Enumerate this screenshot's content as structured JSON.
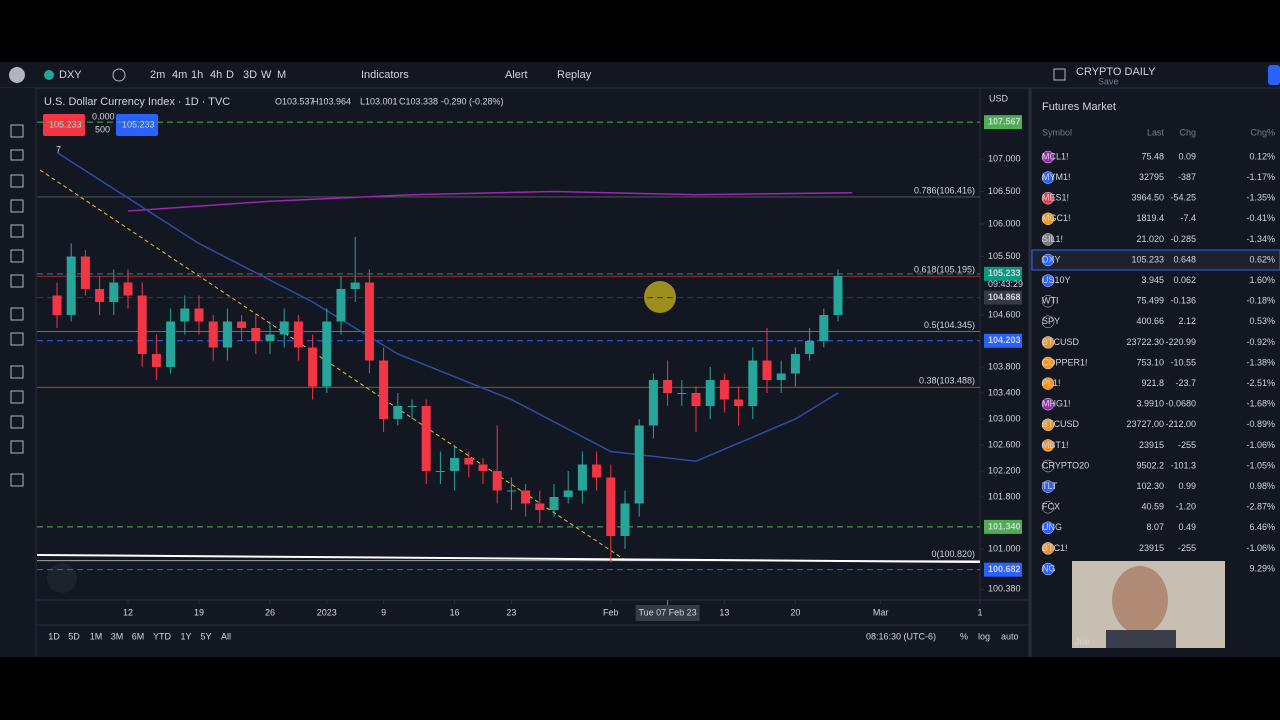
{
  "toolbar": {
    "symbol": "DXY",
    "intervals": [
      "2m",
      "4m",
      "1h",
      "4h",
      "D",
      "3D",
      "W",
      "M"
    ],
    "indicators": "Indicators",
    "alert": "Alert",
    "replay": "Replay",
    "layout_name": "CRYPTO DAILY",
    "layout_sub": "Save"
  },
  "legend": {
    "ohlc": [
      "O103.537",
      "H103.964",
      "L103.001",
      "C103.338",
      "-0.290 (-0.28%)"
    ],
    "bid": "105.233",
    "spread_top": "0.000",
    "spread_bottom": "500",
    "ask": "105.233",
    "indicator_count": "7",
    "currency": "USD"
  },
  "chart_data": {
    "type": "candlestick",
    "title": "U.S. Dollar Currency Index · 1D · TVC",
    "open": [
      104.9,
      104.6,
      105.5,
      105.0,
      104.8,
      105.1,
      104.9,
      104.0,
      103.8,
      104.5,
      104.7,
      104.5,
      104.1,
      104.5,
      104.4,
      104.2,
      104.3,
      104.5,
      104.1,
      103.5,
      104.5,
      105.0,
      105.1,
      103.9,
      103.0,
      103.2,
      103.2,
      102.2,
      102.2,
      102.4,
      102.3,
      102.2,
      101.9,
      101.9,
      101.7,
      101.6,
      101.8,
      101.9,
      102.3,
      102.1,
      101.2,
      101.7,
      102.9,
      103.6,
      103.4,
      103.4,
      103.2,
      103.6,
      103.3,
      103.2,
      103.9,
      103.6,
      103.7,
      104.0,
      104.2,
      104.6
    ],
    "high": [
      105.1,
      105.7,
      105.6,
      105.2,
      105.3,
      105.3,
      105.1,
      104.3,
      104.7,
      104.9,
      104.9,
      104.6,
      104.7,
      104.6,
      104.6,
      104.5,
      104.7,
      104.6,
      104.3,
      104.7,
      105.2,
      105.8,
      105.3,
      104.1,
      103.4,
      103.3,
      103.3,
      102.5,
      102.6,
      102.5,
      102.4,
      102.9,
      102.1,
      102.0,
      101.9,
      102.0,
      102.2,
      102.5,
      102.5,
      102.3,
      101.9,
      103.0,
      103.7,
      103.9,
      103.6,
      103.5,
      103.8,
      103.7,
      103.5,
      104.1,
      104.4,
      103.9,
      104.1,
      104.4,
      104.7,
      105.3
    ],
    "low": [
      104.4,
      104.5,
      104.9,
      104.6,
      104.6,
      104.7,
      103.8,
      103.6,
      103.7,
      104.3,
      104.3,
      103.9,
      103.9,
      104.2,
      104.0,
      104.0,
      104.1,
      103.9,
      103.3,
      103.4,
      104.3,
      104.8,
      103.7,
      102.8,
      102.9,
      103.0,
      102.0,
      102.0,
      101.9,
      102.1,
      102.0,
      101.7,
      101.6,
      101.5,
      101.4,
      101.5,
      101.7,
      101.7,
      101.9,
      100.8,
      101.0,
      101.5,
      102.7,
      103.2,
      103.2,
      102.8,
      103.0,
      103.1,
      102.9,
      103.0,
      103.4,
      103.4,
      103.5,
      103.9,
      104.1,
      104.5
    ],
    "close": [
      104.6,
      105.5,
      105.0,
      104.8,
      105.1,
      104.9,
      104.0,
      103.8,
      104.5,
      104.7,
      104.5,
      104.1,
      104.5,
      104.4,
      104.2,
      104.3,
      104.5,
      104.1,
      103.5,
      104.5,
      105.0,
      105.1,
      103.9,
      103.0,
      103.2,
      103.2,
      102.2,
      102.2,
      102.4,
      102.3,
      102.2,
      101.9,
      101.9,
      101.7,
      101.6,
      101.8,
      101.9,
      102.3,
      102.1,
      101.2,
      101.7,
      102.9,
      103.6,
      103.4,
      103.4,
      103.2,
      103.6,
      103.3,
      103.2,
      103.9,
      103.6,
      103.7,
      104.0,
      104.2,
      104.6,
      105.2
    ],
    "up_color": "#26a69a",
    "down_color": "#f23645",
    "moving_averages": [
      {
        "color": "#9c27b0",
        "x": [
          5,
          15,
          25,
          35,
          45,
          56
        ],
        "values": [
          106.2,
          106.35,
          106.45,
          106.5,
          106.45,
          106.48
        ]
      },
      {
        "color": "#2d4ea8",
        "x": [
          0,
          10,
          18,
          24,
          32,
          39,
          45,
          52,
          55
        ],
        "values": [
          107.1,
          105.7,
          104.8,
          104.0,
          103.3,
          102.5,
          102.35,
          103.0,
          103.4
        ]
      }
    ],
    "fib_levels": [
      {
        "value": 106.416,
        "label": "0.786(106.416)",
        "color": "#787b86"
      },
      {
        "value": 105.195,
        "label": "0.618(105.195)",
        "color": "#f23645"
      },
      {
        "value": 104.345,
        "label": "0.5(104.345)",
        "color": "#8bc34a"
      },
      {
        "value": 103.488,
        "label": "0.38(103.488)",
        "color": "#ff9800"
      },
      {
        "value": 100.82,
        "label": "0(100.820)",
        "color": "#ffffff"
      }
    ],
    "price_lines": [
      {
        "value": 107.567,
        "label": "107.567",
        "color": "#4caf50"
      },
      {
        "value": 105.233,
        "label": "105.233",
        "color": "#089981"
      },
      {
        "value": 104.868,
        "label": "104.868",
        "color": "#363a45"
      },
      {
        "value": 104.203,
        "label": "104.203",
        "color": "#2962ff"
      },
      {
        "value": 101.34,
        "label": "101.340",
        "color": "#4caf50"
      },
      {
        "value": 100.682,
        "label": "100.682",
        "color": "#2962ff"
      }
    ],
    "countdown": "09:43:29",
    "ylim": [
      100.18,
      108.07
    ],
    "yticks": [
      {
        "value": 107,
        "label": "107.000"
      },
      {
        "value": 106.5,
        "label": "106.500"
      },
      {
        "value": 106,
        "label": "106.000"
      },
      {
        "value": 105.5,
        "label": "105.500"
      },
      {
        "value": 104.6,
        "label": "104.600"
      },
      {
        "value": 103.8,
        "label": "103.800"
      },
      {
        "value": 103.4,
        "label": "103.400"
      },
      {
        "value": 103,
        "label": "103.000"
      },
      {
        "value": 102.6,
        "label": "102.600"
      },
      {
        "value": 102.2,
        "label": "102.200"
      },
      {
        "value": 101.8,
        "label": "101.800"
      },
      {
        "value": 101,
        "label": "101.000"
      },
      {
        "value": 100.38,
        "label": "100.380"
      }
    ],
    "xticks": [
      {
        "value": 5,
        "label": "12"
      },
      {
        "value": 10,
        "label": "19"
      },
      {
        "value": 15,
        "label": "26"
      },
      {
        "value": 19,
        "label": "2023"
      },
      {
        "value": 23,
        "label": "9"
      },
      {
        "value": 28,
        "label": "16"
      },
      {
        "value": 32,
        "label": "23"
      },
      {
        "value": 39,
        "label": "Feb"
      },
      {
        "value": 47,
        "label": "13"
      },
      {
        "value": 52,
        "label": "20"
      },
      {
        "value": 58,
        "label": "Mar"
      },
      {
        "value": 65,
        "label": "1"
      }
    ],
    "crosshair": {
      "value": 43,
      "label": "Tue 07 Feb 23"
    }
  },
  "bottom_bar": {
    "ranges": [
      "1D",
      "5D",
      "1M",
      "3M",
      "6M",
      "YTD",
      "1Y",
      "5Y",
      "All"
    ],
    "clock": "08:16:30 (UTC-6)",
    "percent": "%",
    "log": "log",
    "auto": "auto"
  },
  "watchlist": {
    "title": "Futures Market",
    "columns": [
      "Symbol",
      "Last",
      "Chg",
      "Chg%"
    ],
    "rows": [
      [
        "MCL1!",
        "75.48",
        "0.09",
        "0.12%"
      ],
      [
        "MYM1!",
        "32795",
        "-387",
        "-1.17%"
      ],
      [
        "MES1!",
        "3964.50",
        "-54.25",
        "-1.35%"
      ],
      [
        "MGC1!",
        "1819.4",
        "-7.4",
        "-0.41%"
      ],
      [
        "SIL1!",
        "21.020",
        "-0.285",
        "-1.34%"
      ],
      [
        "DXY",
        "105.233",
        "0.648",
        "0.62%"
      ],
      [
        "US10Y",
        "3.945",
        "0.062",
        "1.60%"
      ],
      [
        "WTI",
        "75.499",
        "-0.136",
        "-0.18%"
      ],
      [
        "SPY",
        "400.66",
        "2.12",
        "0.53%"
      ],
      [
        "BTCUSD",
        "23722.30",
        "-220.99",
        "-0.92%"
      ],
      [
        "COPPER1!",
        "753.10",
        "-10.55",
        "-1.38%"
      ],
      [
        "PL1!",
        "921.8",
        "-23.7",
        "-2.51%"
      ],
      [
        "MHG1!",
        "3.9910",
        "-0.0680",
        "-1.68%"
      ],
      [
        "BTCUSD",
        "23727.00",
        "-212.00",
        "-0.89%"
      ],
      [
        "MBT1!",
        "23915",
        "-255",
        "-1.06%"
      ],
      [
        "CRYPTO20",
        "9502.2",
        "-101.3",
        "-1.05%"
      ],
      [
        "TLT",
        "102.30",
        "0.99",
        "0.98%"
      ],
      [
        "FCX",
        "40.59",
        "-1.20",
        "-2.87%"
      ],
      [
        "UNG",
        "8.07",
        "0.49",
        "6.46%"
      ],
      [
        "BTC1!",
        "23915",
        "-255",
        "-1.06%"
      ],
      [
        "NG",
        "",
        "",
        "9.29%"
      ]
    ]
  },
  "webcam": {
    "name": "Joe"
  }
}
